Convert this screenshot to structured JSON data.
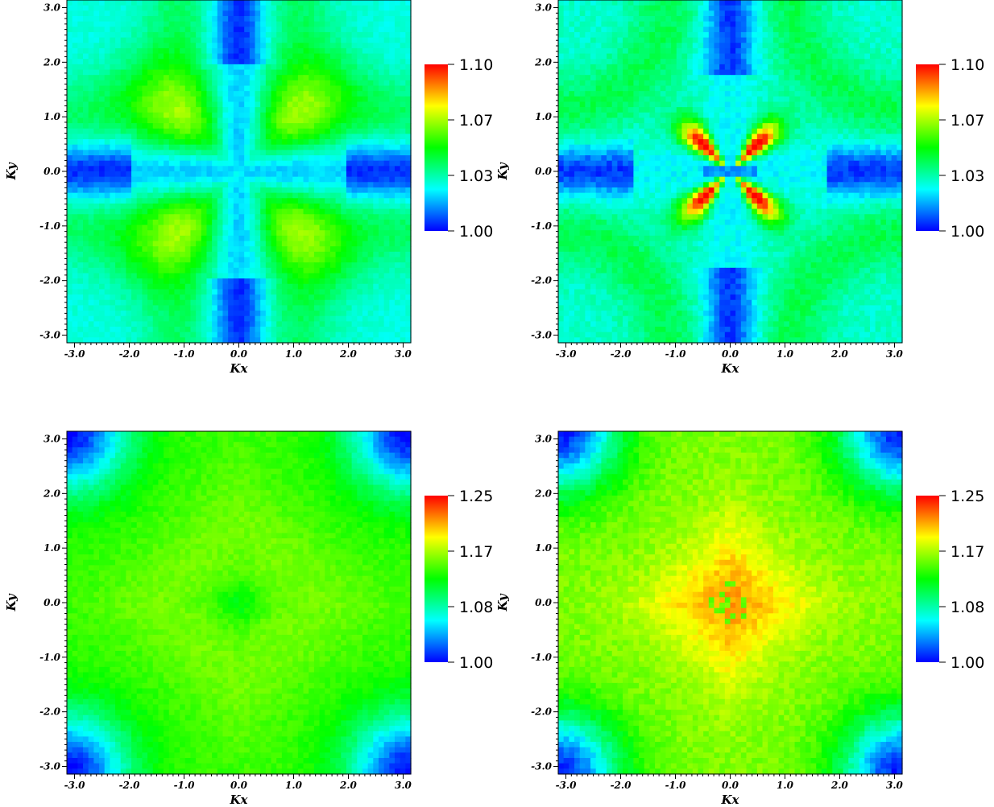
{
  "chart_data": [
    {
      "type": "heatmap",
      "pattern": "lobes",
      "xlabel": "Kx",
      "ylabel": "Ky",
      "xlim": [
        -3.14,
        3.14
      ],
      "ylim": [
        -3.14,
        3.14
      ],
      "x_ticks": [
        "-3.0",
        "-2.0",
        "-1.0",
        "0.0",
        "1.0",
        "2.0",
        "3.0"
      ],
      "y_ticks": [
        "-3.0",
        "-2.0",
        "-1.0",
        "0.0",
        "1.0",
        "2.0",
        "3.0"
      ],
      "grid": false,
      "colormap": [
        "#0000ff",
        "#00ffff",
        "#00ff00",
        "#ffff00",
        "#ff0000"
      ],
      "colorbar": {
        "min": 1.0,
        "max": 1.1,
        "labels": [
          "1.10",
          "1.07",
          "1.03",
          "1.00"
        ]
      }
    },
    {
      "type": "heatmap",
      "pattern": "cross",
      "xlabel": "Kx",
      "ylabel": "Ky",
      "xlim": [
        -3.14,
        3.14
      ],
      "ylim": [
        -3.14,
        3.14
      ],
      "x_ticks": [
        "-3.0",
        "-2.0",
        "-1.0",
        "0.0",
        "1.0",
        "2.0",
        "3.0"
      ],
      "y_ticks": [
        "-3.0",
        "-2.0",
        "-1.0",
        "0.0",
        "1.0",
        "2.0",
        "3.0"
      ],
      "grid": false,
      "colormap": [
        "#0000ff",
        "#00ffff",
        "#00ff00",
        "#ffff00",
        "#ff0000"
      ],
      "colorbar": {
        "min": 1.0,
        "max": 1.1,
        "labels": [
          "1.10",
          "1.07",
          "1.03",
          "1.00"
        ]
      }
    },
    {
      "type": "heatmap",
      "pattern": "diamond-low",
      "xlabel": "Kx",
      "ylabel": "Ky",
      "xlim": [
        -3.14,
        3.14
      ],
      "ylim": [
        -3.14,
        3.14
      ],
      "x_ticks": [
        "-3.0",
        "-2.0",
        "-1.0",
        "0.0",
        "1.0",
        "2.0",
        "3.0"
      ],
      "y_ticks": [
        "-3.0",
        "-2.0",
        "-1.0",
        "0.0",
        "1.0",
        "2.0",
        "3.0"
      ],
      "grid": false,
      "colormap": [
        "#0000ff",
        "#00ffff",
        "#00ff00",
        "#ffff00",
        "#ff0000"
      ],
      "colorbar": {
        "min": 1.0,
        "max": 1.25,
        "labels": [
          "1.25",
          "1.17",
          "1.08",
          "1.00"
        ]
      }
    },
    {
      "type": "heatmap",
      "pattern": "diamond-high",
      "xlabel": "Kx",
      "ylabel": "Ky",
      "xlim": [
        -3.14,
        3.14
      ],
      "ylim": [
        -3.14,
        3.14
      ],
      "x_ticks": [
        "-3.0",
        "-2.0",
        "-1.0",
        "0.0",
        "1.0",
        "2.0",
        "3.0"
      ],
      "y_ticks": [
        "-3.0",
        "-2.0",
        "-1.0",
        "0.0",
        "1.0",
        "2.0",
        "3.0"
      ],
      "grid": false,
      "colormap": [
        "#0000ff",
        "#00ffff",
        "#00ff00",
        "#ffff00",
        "#ff0000"
      ],
      "colorbar": {
        "min": 1.0,
        "max": 1.25,
        "labels": [
          "1.25",
          "1.17",
          "1.08",
          "1.00"
        ]
      }
    }
  ]
}
